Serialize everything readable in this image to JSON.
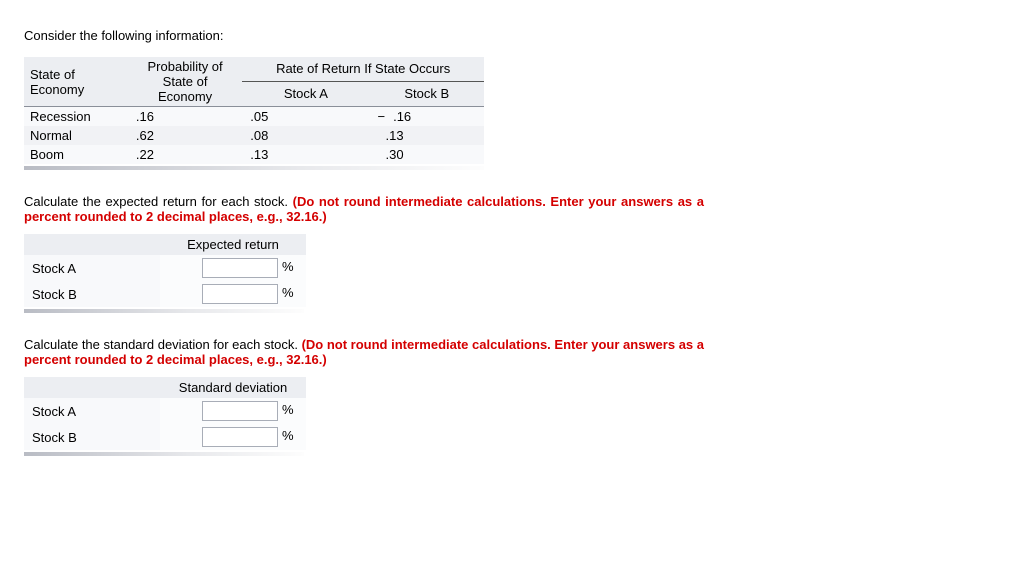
{
  "intro": "Consider the following information:",
  "table": {
    "header": {
      "state_line1": "State of",
      "state_line2": "Economy",
      "prob_line1": "Probability of",
      "prob_line2": "State of",
      "prob_line3": "Economy",
      "span": "Rate of Return If State Occurs",
      "stockA": "Stock A",
      "stockB": "Stock B"
    },
    "rows": [
      {
        "state": "Recession",
        "prob": ".16",
        "a": ".05",
        "b_neg": "−",
        "b": ".16"
      },
      {
        "state": "Normal",
        "prob": ".62",
        "a": ".08",
        "b_neg": "",
        "b": ".13"
      },
      {
        "state": "Boom",
        "prob": ".22",
        "a": ".13",
        "b_neg": "",
        "b": ".30"
      }
    ]
  },
  "q1": {
    "text_black": "Calculate the expected return for each stock. ",
    "text_red": "(Do not round intermediate calculations. Enter your answers as a percent rounded to 2 decimal places, e.g., 32.16.)",
    "header": "Expected return",
    "rows": [
      "Stock A",
      "Stock B"
    ],
    "unit": "%"
  },
  "q2": {
    "text_black": "Calculate the standard deviation for each stock. ",
    "text_red": "(Do not round intermediate calculations. Enter your answers as a percent rounded to 2 decimal places, e.g., 32.16.)",
    "header": "Standard deviation",
    "rows": [
      "Stock A",
      "Stock B"
    ],
    "unit": "%"
  },
  "colors": {
    "instruction_red": "#d40000",
    "table_bg": "#f3f4f6",
    "header_bg": "#eceef2"
  }
}
